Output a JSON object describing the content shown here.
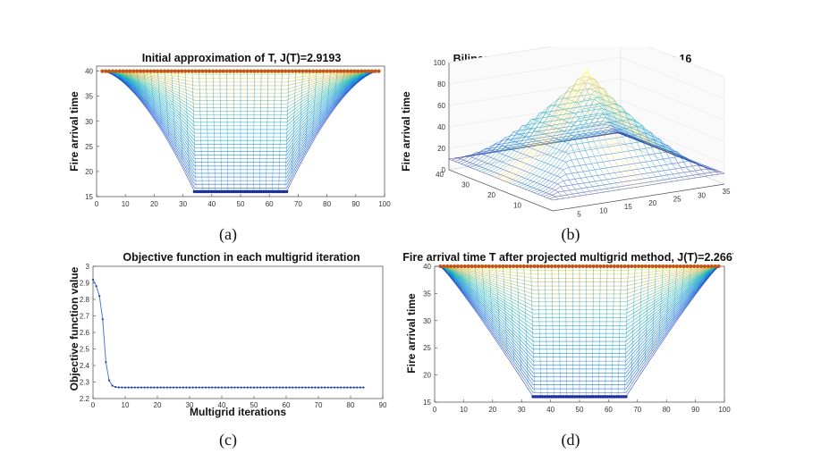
{
  "panel_a": {
    "caption": "(a)",
    "title": "Initial approximation of T, J(T)=2.9193",
    "ylabel": "Fire arrival time",
    "xticks": [
      "0",
      "10",
      "20",
      "30",
      "40",
      "50",
      "60",
      "70",
      "80",
      "90",
      "100"
    ],
    "yticks": [
      "15",
      "20",
      "25",
      "30",
      "35",
      "40"
    ]
  },
  "panel_b": {
    "caption": "(b)",
    "title": "Bilinear coarse grid function at mesh step 16",
    "zlabel": "Fire arrival time",
    "zticks": [
      "0",
      "20",
      "40",
      "60",
      "80",
      "100"
    ],
    "yticks": [
      "10",
      "20",
      "30",
      "40"
    ],
    "xticks": [
      "5",
      "10",
      "15",
      "20",
      "25",
      "30",
      "35"
    ]
  },
  "panel_c": {
    "caption": "(c)",
    "title": "Objective function in each multigrid iteration",
    "ylabel": "Objective function value",
    "xlabel": "Multigrid iterations",
    "xticks": [
      "0",
      "10",
      "20",
      "30",
      "40",
      "50",
      "60",
      "70",
      "80",
      "90"
    ],
    "yticks": [
      "2.2",
      "2.3",
      "2.4",
      "2.5",
      "2.6",
      "2.7",
      "2.8",
      "2.9",
      "3"
    ]
  },
  "panel_d": {
    "caption": "(d)",
    "title": "Fire arrival time T after projected multigrid method, J(T)=2.2667",
    "ylabel": "Fire arrival time",
    "xticks": [
      "0",
      "10",
      "20",
      "30",
      "40",
      "50",
      "60",
      "70",
      "80",
      "90",
      "100"
    ],
    "yticks": [
      "15",
      "20",
      "25",
      "30",
      "35",
      "40"
    ]
  },
  "chart_data": [
    {
      "type": "line",
      "title": "Initial approximation of T, J(T)=2.9193",
      "ylabel": "Fire arrival time",
      "xlim": [
        0,
        100
      ],
      "ylim": [
        15,
        41
      ],
      "series": [
        {
          "x": [
            2,
            10,
            20,
            30,
            34,
            40,
            50,
            60,
            66,
            70,
            80,
            90,
            98
          ],
          "y": [
            40,
            38.5,
            33,
            24,
            16,
            16,
            16,
            16,
            16,
            24,
            33,
            38.5,
            40
          ]
        }
      ]
    },
    {
      "type": "line",
      "title": "Bilinear coarse grid function at mesh step 16",
      "zlabel": "Fire arrival time",
      "xlim": [
        0,
        35
      ],
      "ylim": [
        0,
        40
      ],
      "zlim": [
        0,
        100
      ]
    },
    {
      "type": "line",
      "title": "Objective function in each multigrid iteration",
      "xlabel": "Multigrid iterations",
      "ylabel": "Objective function value",
      "xlim": [
        0,
        90
      ],
      "ylim": [
        2.2,
        3
      ],
      "series": [
        {
          "x": [
            0,
            1,
            2,
            3,
            4,
            5,
            6,
            7,
            8,
            10,
            20,
            40,
            60,
            84
          ],
          "y": [
            2.9193,
            2.88,
            2.82,
            2.68,
            2.42,
            2.31,
            2.278,
            2.27,
            2.2675,
            2.2667,
            2.2667,
            2.2667,
            2.2667,
            2.2667
          ]
        }
      ]
    },
    {
      "type": "line",
      "title": "Fire arrival time T after projected multigrid method, J(T)=2.2667",
      "ylabel": "Fire arrival time",
      "xlim": [
        0,
        100
      ],
      "ylim": [
        15,
        40
      ],
      "series": [
        {
          "x": [
            2,
            10,
            20,
            30,
            34,
            40,
            50,
            60,
            66,
            70,
            80,
            90,
            98
          ],
          "y": [
            40,
            39,
            36,
            26,
            16,
            16,
            16,
            16,
            16,
            26,
            36,
            39,
            40
          ]
        }
      ]
    }
  ]
}
